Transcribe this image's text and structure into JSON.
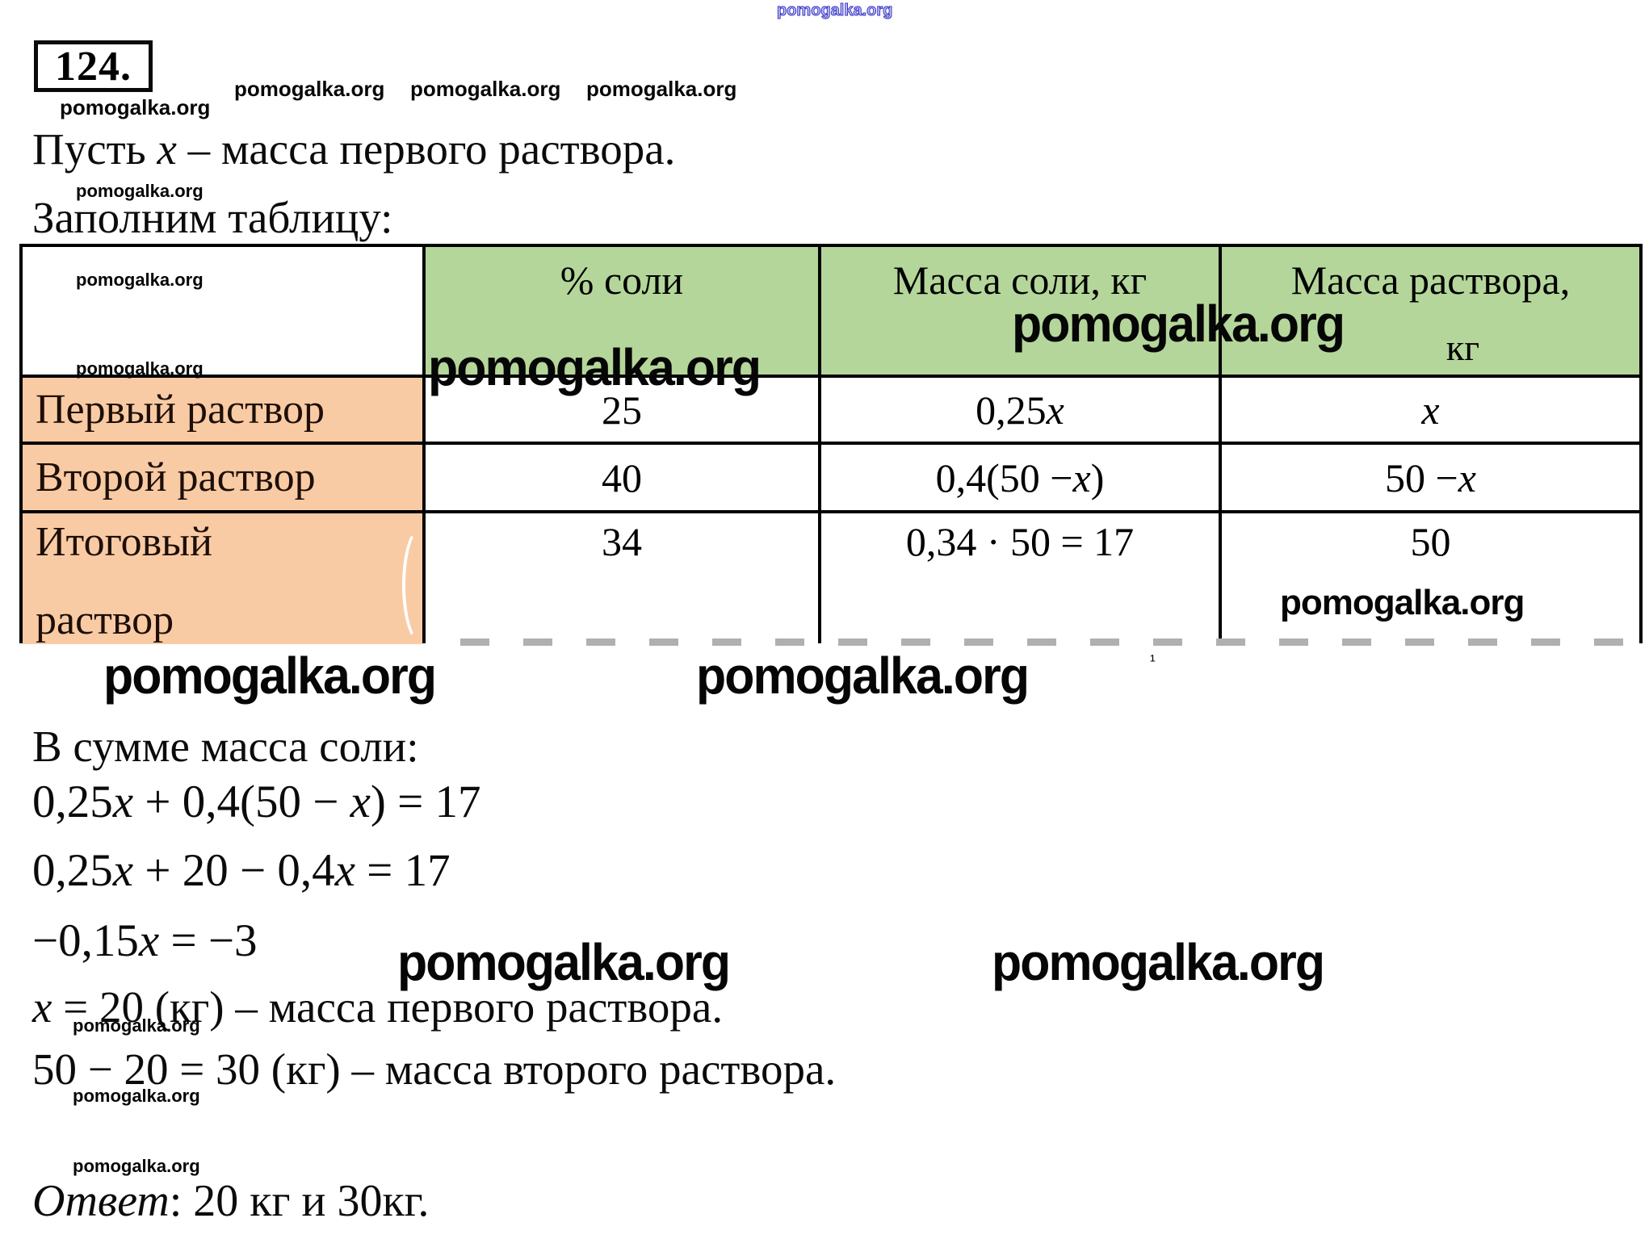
{
  "watermark": "pomogalka.org",
  "problem_number": "124.",
  "intro_line": "Пусть x – масса первого раствора.",
  "table_caption": "Заполним таблицу:",
  "table": {
    "headers": {
      "col1": "",
      "col2": "% соли",
      "col3": "Масса соли, кг",
      "col4_line1": "Масса раствора,",
      "col4_line2": "кг"
    },
    "rows": [
      {
        "label": "Первый раствор",
        "percent": "25",
        "salt_mass": "0,25x",
        "solution_mass": "x"
      },
      {
        "label": "Второй раствор",
        "percent": "40",
        "salt_mass": "0,4(50 − x)",
        "solution_mass": "50 − x"
      },
      {
        "label_line1": "Итоговый",
        "label_line2": "раствор",
        "percent": "34",
        "salt_mass": "0,34 · 50 = 17",
        "solution_mass": "50"
      }
    ]
  },
  "sum_heading": "В сумме масса соли:",
  "equations": [
    "0,25x + 0,4(50 − x) = 17",
    "0,25x + 20 − 0,4x = 17",
    "−0,15x = −3"
  ],
  "result_line1": "x = 20 (кг) – масса первого раствора.",
  "result_line2": "50 − 20 = 30 (кг) – масса второго раствора.",
  "answer_label": "Ответ",
  "answer_text": ": 20 кг и 30кг.",
  "superscript_mark": "¹",
  "colors": {
    "table_header_green": "#b5d69a",
    "table_row_orange": "#f9cba5",
    "watermark_blue": "#3432c4",
    "text_black": "#0b0b0b"
  }
}
